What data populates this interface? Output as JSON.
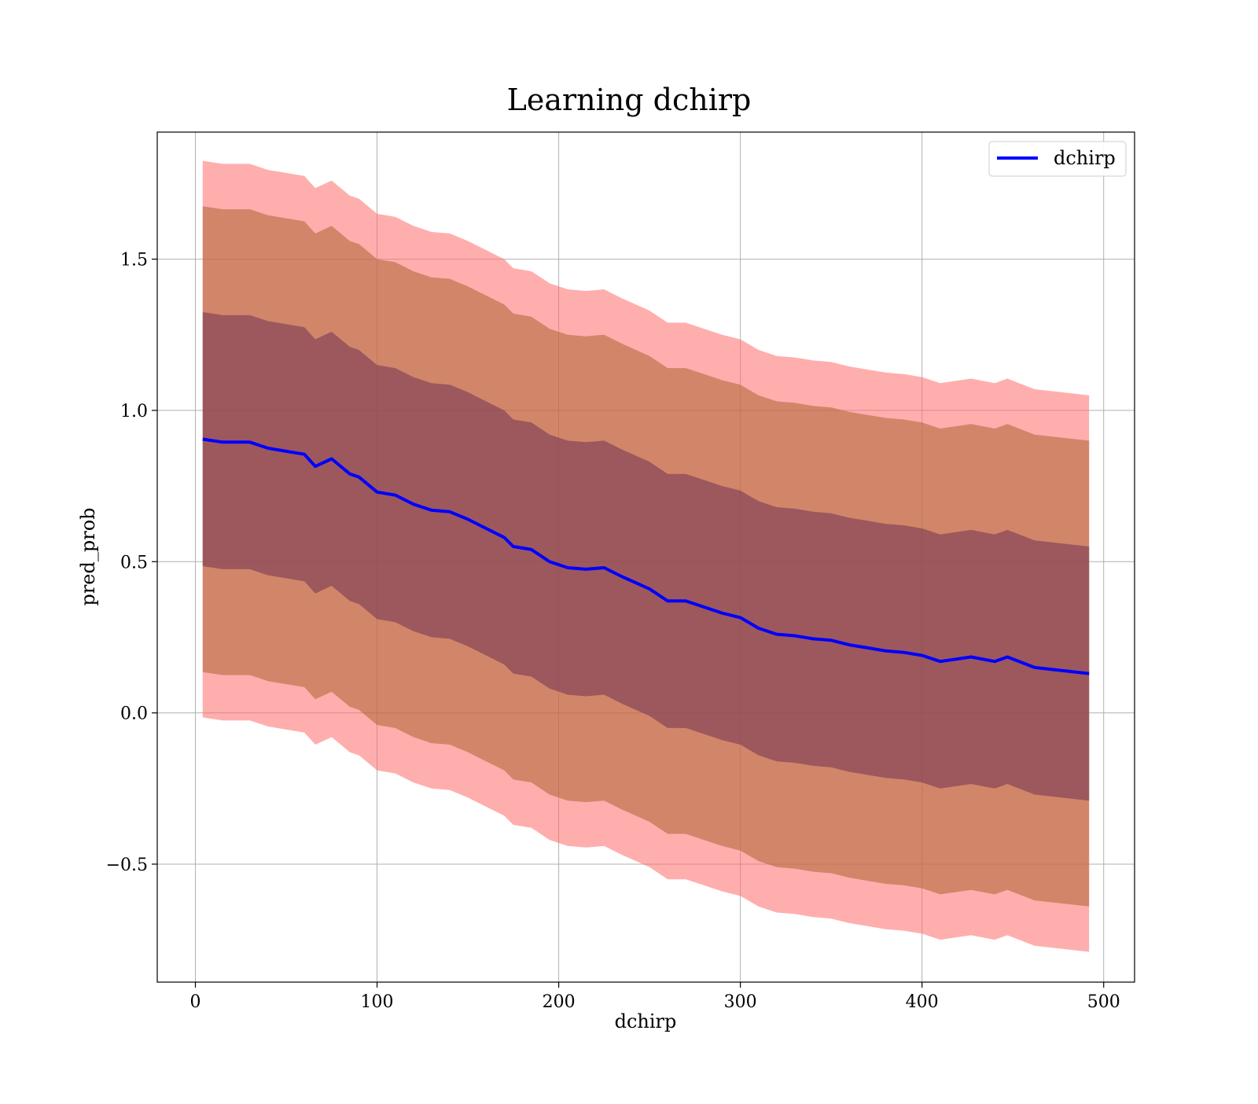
{
  "chart_data": {
    "type": "line",
    "title": "Learning dchirp",
    "xlabel": "dchirp",
    "ylabel": "pred_prob",
    "xlim": [
      -21,
      517
    ],
    "ylim": [
      -0.89,
      1.92
    ],
    "xticks": [
      0,
      100,
      200,
      300,
      400,
      500
    ],
    "xtick_labels": [
      "0",
      "100",
      "200",
      "300",
      "400",
      "500"
    ],
    "yticks": [
      -0.5,
      0.0,
      0.5,
      1.0,
      1.5
    ],
    "ytick_labels": [
      "−0.5",
      "0.0",
      "0.5",
      "1.0",
      "1.5"
    ],
    "grid": true,
    "legend": {
      "position": "top-right",
      "entries": [
        "dchirp"
      ]
    },
    "colors": {
      "line": "#0000ff",
      "band_outer": "#ff6b6b",
      "band_mid": "#b36b3c",
      "band_inner": "#7a3a55"
    },
    "x": [
      4,
      15,
      30,
      40,
      50,
      60,
      66,
      75,
      85,
      90,
      100,
      110,
      120,
      130,
      140,
      150,
      160,
      170,
      175,
      185,
      195,
      205,
      215,
      225,
      235,
      250,
      260,
      270,
      280,
      290,
      300,
      310,
      320,
      330,
      340,
      350,
      360,
      370,
      380,
      390,
      400,
      410,
      427,
      440,
      447,
      462,
      492
    ],
    "series": [
      {
        "name": "dchirp",
        "values": [
          0.905,
          0.895,
          0.895,
          0.875,
          0.865,
          0.855,
          0.815,
          0.84,
          0.79,
          0.78,
          0.73,
          0.72,
          0.69,
          0.67,
          0.665,
          0.64,
          0.61,
          0.58,
          0.55,
          0.54,
          0.5,
          0.48,
          0.475,
          0.48,
          0.45,
          0.41,
          0.37,
          0.37,
          0.35,
          0.33,
          0.315,
          0.28,
          0.26,
          0.255,
          0.245,
          0.24,
          0.225,
          0.215,
          0.205,
          0.2,
          0.19,
          0.17,
          0.185,
          0.17,
          0.185,
          0.15,
          0.13
        ]
      }
    ],
    "bands": [
      {
        "half_width": 0.92,
        "color": "#ff6b6b"
      },
      {
        "half_width": 0.77,
        "color": "#b36b3c"
      },
      {
        "half_width": 0.42,
        "color": "#7a3a55"
      }
    ]
  }
}
